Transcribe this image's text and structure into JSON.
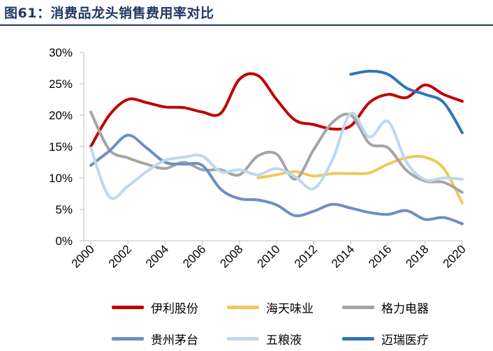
{
  "title": "图61：消费品龙头销售费用率对比",
  "colors": {
    "title": "#1f3864",
    "axis": "#bfbfbf"
  },
  "chart_data": {
    "type": "line",
    "title": "图61：消费品龙头销售费用率对比",
    "xlabel": "",
    "ylabel": "",
    "x": [
      2000,
      2001,
      2002,
      2003,
      2004,
      2005,
      2006,
      2007,
      2008,
      2009,
      2010,
      2011,
      2012,
      2013,
      2014,
      2015,
      2016,
      2017,
      2018,
      2019,
      2020
    ],
    "x_ticks": [
      "2000",
      "2002",
      "2004",
      "2006",
      "2008",
      "2010",
      "2012",
      "2014",
      "2016",
      "2018",
      "2020"
    ],
    "y_ticks": [
      "0%",
      "5%",
      "10%",
      "15%",
      "20%",
      "25%",
      "30%"
    ],
    "ylim": [
      0,
      30
    ],
    "grid": false,
    "legend_position": "bottom",
    "series": [
      {
        "name": "伊利股份",
        "color": "#c00000",
        "values": [
          15.0,
          20.0,
          22.5,
          22.0,
          21.3,
          21.2,
          20.5,
          20.3,
          25.7,
          26.3,
          22.5,
          19.2,
          18.5,
          17.8,
          18.3,
          22.0,
          23.3,
          22.8,
          24.8,
          23.3,
          22.2
        ]
      },
      {
        "name": "海天味业",
        "color": "#f0c858",
        "values": [
          null,
          null,
          null,
          null,
          null,
          null,
          null,
          null,
          null,
          10.0,
          10.5,
          11.0,
          10.3,
          10.7,
          10.7,
          10.8,
          12.2,
          13.2,
          13.3,
          11.5,
          6.0
        ]
      },
      {
        "name": "格力电器",
        "color": "#a5a5a5",
        "values": [
          20.5,
          14.5,
          13.2,
          12.2,
          11.5,
          12.5,
          11.3,
          11.3,
          10.5,
          13.5,
          13.8,
          9.8,
          14.5,
          18.8,
          20.0,
          15.5,
          14.8,
          11.2,
          9.5,
          9.3,
          7.7
        ]
      },
      {
        "name": "贵州茅台",
        "color": "#6d8fc2",
        "values": [
          12.0,
          14.3,
          16.8,
          14.8,
          12.5,
          12.2,
          12.0,
          8.2,
          6.7,
          6.5,
          5.7,
          4.0,
          4.7,
          5.8,
          5.2,
          4.5,
          4.2,
          4.8,
          3.4,
          3.7,
          2.7
        ]
      },
      {
        "name": "五粮液",
        "color": "#bdd7ee",
        "values": [
          14.8,
          7.0,
          8.7,
          11.0,
          12.8,
          13.3,
          13.5,
          11.0,
          11.3,
          10.5,
          11.5,
          10.2,
          8.3,
          12.8,
          20.3,
          16.5,
          19.0,
          12.5,
          9.7,
          10.0,
          9.8
        ]
      },
      {
        "name": "迈瑞医疗",
        "color": "#2e75b6",
        "values": [
          null,
          null,
          null,
          null,
          null,
          null,
          null,
          null,
          null,
          null,
          null,
          null,
          null,
          null,
          26.5,
          27.0,
          26.5,
          24.3,
          23.3,
          22.0,
          17.2
        ]
      }
    ]
  }
}
